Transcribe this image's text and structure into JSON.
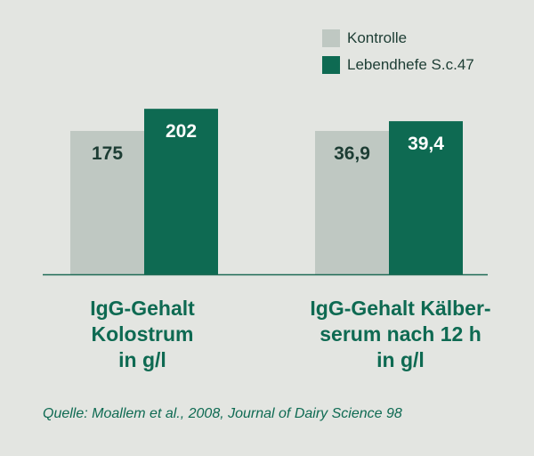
{
  "chart_data": {
    "type": "bar",
    "groups": [
      {
        "label": "IgG-Gehalt\nKolostrum\nin g/l",
        "values": [
          175,
          202
        ],
        "value_labels": [
          "175",
          "202"
        ]
      },
      {
        "label": "IgG-Gehalt Kälber-\nserum nach 12 h\nin g/l",
        "values": [
          36.9,
          39.4
        ],
        "value_labels": [
          "36,9",
          "39,4"
        ]
      }
    ],
    "series": [
      {
        "name": "Kontrolle",
        "color": "#bfc8c2"
      },
      {
        "name": "Lebendhefe S.c.47",
        "color": "#0e6a52"
      }
    ],
    "legend": "top-right",
    "grid": false,
    "baseline_color": "#1e6b55"
  },
  "source": "Quelle: Moallem et al., 2008, Journal of Dairy Science 98"
}
